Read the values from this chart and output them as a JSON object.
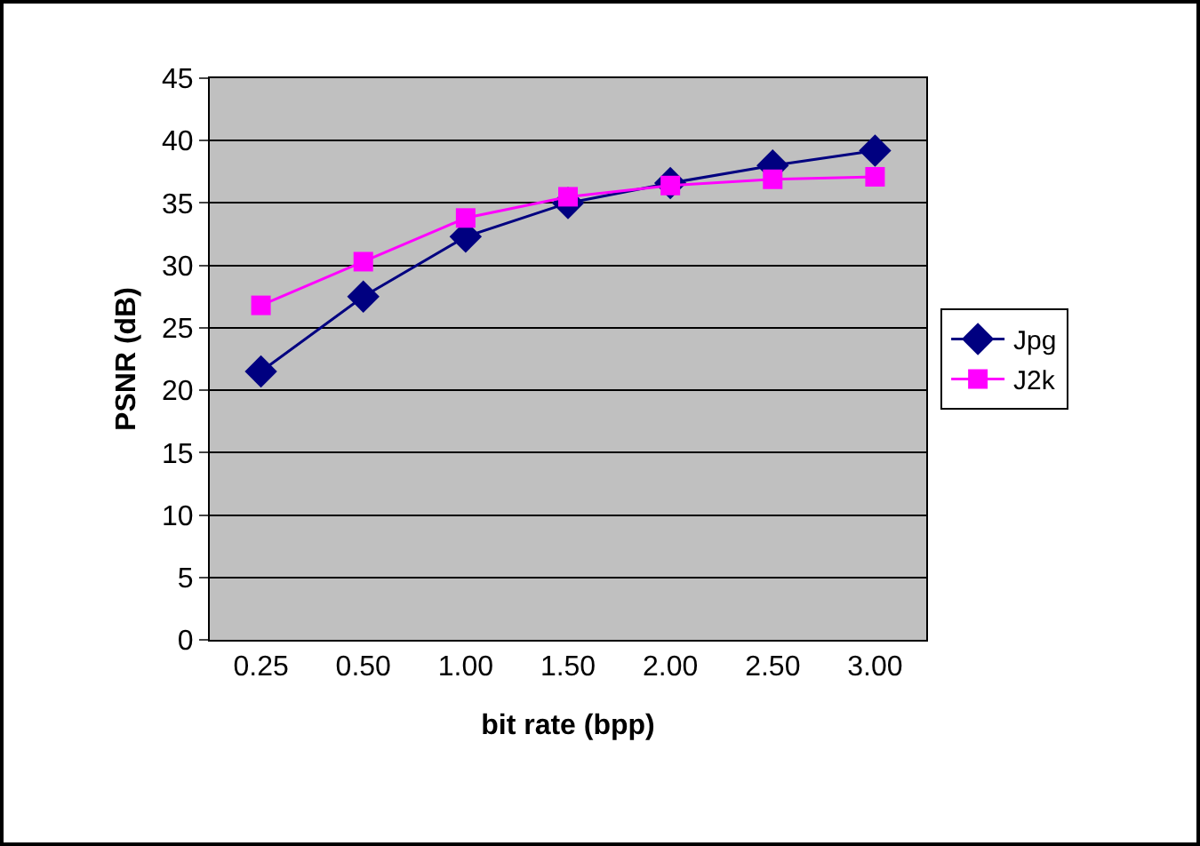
{
  "chart_data": {
    "type": "line",
    "xlabel": "bit rate (bpp)",
    "ylabel": "PSNR (dB)",
    "categories": [
      "0.25",
      "0.50",
      "1.00",
      "1.50",
      "2.00",
      "2.50",
      "3.00"
    ],
    "series": [
      {
        "name": "Jpg",
        "color": "#000080",
        "marker": "diamond",
        "values": [
          21.5,
          27.5,
          32.3,
          35.0,
          36.6,
          38.0,
          39.2
        ]
      },
      {
        "name": "J2k",
        "color": "#ff00ff",
        "marker": "square",
        "values": [
          26.8,
          30.3,
          33.8,
          35.5,
          36.4,
          36.9,
          37.1
        ]
      }
    ],
    "ylim": [
      0,
      45
    ],
    "yticks": [
      0,
      5,
      10,
      15,
      20,
      25,
      30,
      35,
      40,
      45
    ],
    "grid": "y",
    "legend": "right",
    "line_style": "solid"
  }
}
